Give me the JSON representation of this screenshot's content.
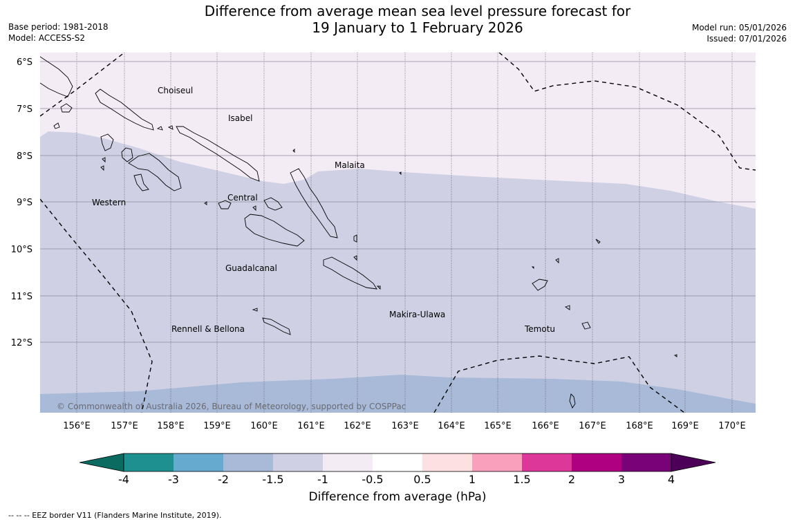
{
  "header": {
    "title_line1": "Difference from average mean sea level pressure forecast for",
    "title_line2": "19 January to 1 February 2026",
    "base_period": "Base period: 1981-2018",
    "model": "Model: ACCESS-S2",
    "model_run": "Model run: 05/01/2026",
    "issued": "Issued: 07/01/2026"
  },
  "map": {
    "lat_labels": [
      "6°S",
      "7°S",
      "8°S",
      "9°S",
      "10°S",
      "11°S",
      "12°S"
    ],
    "lon_labels": [
      "156°E",
      "157°E",
      "158°E",
      "159°E",
      "160°E",
      "161°E",
      "162°E",
      "163°E",
      "164°E",
      "165°E",
      "166°E",
      "167°E",
      "168°E",
      "169°E",
      "170°E"
    ],
    "region_labels": {
      "choiseul": "Choiseul",
      "isabel": "Isabel",
      "malaita": "Malaita",
      "western": "Western",
      "central": "Central",
      "guadalcanal": "Guadalcanal",
      "makira": "Makira-Ulawa",
      "rennell": "Rennell & Bellona",
      "temotu": "Temotu"
    },
    "copyright": "© Commonwealth of Australia 2026, Bureau of Meteorology, supported by COSPPac"
  },
  "colorbar": {
    "tick_labels": [
      "-4",
      "-3",
      "-2",
      "-1.5",
      "-1",
      "-0.5",
      "0.5",
      "1",
      "1.5",
      "2",
      "3",
      "4"
    ],
    "colors": [
      "#1f9090",
      "#66aacf",
      "#a8bad8",
      "#cfd0e4",
      "#f3ecf5",
      "#ffffff",
      "#fde0e1",
      "#f8a0bc",
      "#dc3799",
      "#ae0080",
      "#7a0279"
    ],
    "under_color": "#0b6b60",
    "over_color": "#4d0058",
    "title": "Difference from average (hPa)"
  },
  "footnote": "--  --  -- EEZ border V11 (Flanders Marine Institute, 2019)."
}
